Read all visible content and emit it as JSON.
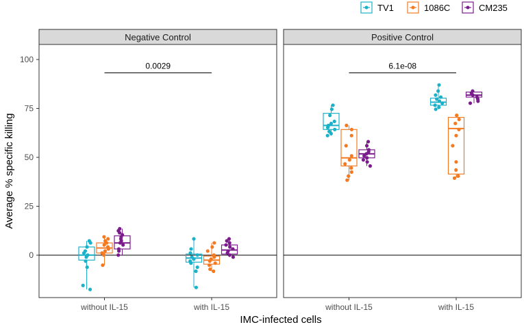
{
  "chart_data": {
    "type": "boxplot",
    "xlabel": "IMC-infected cells",
    "ylabel": "Average % specific killing",
    "ylim": [
      -20,
      105
    ],
    "yticks": [
      0,
      25,
      50,
      75,
      100
    ],
    "legend": {
      "position": "top-right",
      "entries": [
        {
          "name": "TV1",
          "color": "#1bb1c8"
        },
        {
          "name": "1086C",
          "color": "#f47a22"
        },
        {
          "name": "CM235",
          "color": "#7b1c8c"
        }
      ]
    },
    "categories": [
      "without IL-15",
      "with IL-15"
    ],
    "panels": [
      {
        "title": "Negative Control",
        "pvalue": {
          "label": "0.0029",
          "y": 91
        },
        "groups": [
          {
            "category": "without IL-15",
            "series": "TV1",
            "box": {
              "q1": -1.5,
              "median": 1,
              "q3": 5
            },
            "points": [
              -16,
              -14,
              -5,
              -2,
              0,
              1,
              2,
              3,
              5,
              7,
              8
            ]
          },
          {
            "category": "without IL-15",
            "series": "1086C",
            "box": {
              "q1": 2,
              "median": 4.5,
              "q3": 7
            },
            "points": [
              -4,
              1,
              2,
              3,
              4,
              5,
              6,
              7,
              8,
              9,
              10
            ]
          },
          {
            "category": "without IL-15",
            "series": "CM235",
            "box": {
              "q1": 4,
              "median": 7,
              "q3": 10.5
            },
            "points": [
              1,
              3,
              4,
              6,
              7,
              8,
              9,
              10,
              11,
              12,
              13,
              14
            ]
          },
          {
            "category": "with IL-15",
            "series": "TV1",
            "box": {
              "q1": -2.5,
              "median": -0.5,
              "q3": 1.5
            },
            "points": [
              -15,
              -7,
              -5,
              -3,
              -2,
              -1,
              0,
              1,
              2,
              4,
              9
            ]
          },
          {
            "category": "with IL-15",
            "series": "1086C",
            "box": {
              "q1": -3.5,
              "median": -1.5,
              "q3": 0.5
            },
            "points": [
              -7,
              -6,
              -4,
              -3,
              -2,
              -1,
              0,
              1,
              3,
              5,
              7
            ]
          },
          {
            "category": "with IL-15",
            "series": "CM235",
            "box": {
              "q1": 1.5,
              "median": 3.5,
              "q3": 6
            },
            "points": [
              0,
              1,
              2,
              3,
              4,
              5,
              6,
              7,
              8,
              9
            ]
          }
        ]
      },
      {
        "title": "Positive Control",
        "pvalue": {
          "label": "6.1e-08",
          "y": 91
        },
        "groups": [
          {
            "category": "without IL-15",
            "series": "TV1",
            "box": {
              "q1": 63,
              "median": 65,
              "q3": 71
            },
            "points": [
              60,
              61,
              62,
              63,
              64,
              65,
              66,
              67,
              70,
              73,
              75
            ]
          },
          {
            "category": "without IL-15",
            "series": "1086C",
            "box": {
              "q1": 45,
              "median": 49,
              "q3": 63
            },
            "points": [
              38,
              40,
              42,
              44,
              46,
              48,
              50,
              55,
              60,
              63,
              65
            ]
          },
          {
            "category": "without IL-15",
            "series": "CM235",
            "box": {
              "q1": 49,
              "median": 51,
              "q3": 53
            },
            "points": [
              45,
              47,
              48,
              49,
              50,
              51,
              52,
              53,
              55,
              57
            ]
          },
          {
            "category": "with IL-15",
            "series": "TV1",
            "box": {
              "q1": 75,
              "median": 76.5,
              "q3": 78.5
            },
            "points": [
              73,
              74,
              75,
              76,
              77,
              78,
              79,
              80,
              82,
              85
            ]
          },
          {
            "category": "with IL-15",
            "series": "1086C",
            "box": {
              "q1": 41,
              "median": 63.5,
              "q3": 69
            },
            "points": [
              39,
              40,
              43,
              47,
              55,
              60,
              63,
              66,
              68,
              70
            ]
          },
          {
            "category": "with IL-15",
            "series": "CM235",
            "box": {
              "q1": 79,
              "median": 80,
              "q3": 81.5
            },
            "points": [
              76,
              77,
              78,
              79,
              80,
              81,
              82
            ]
          }
        ]
      }
    ]
  }
}
